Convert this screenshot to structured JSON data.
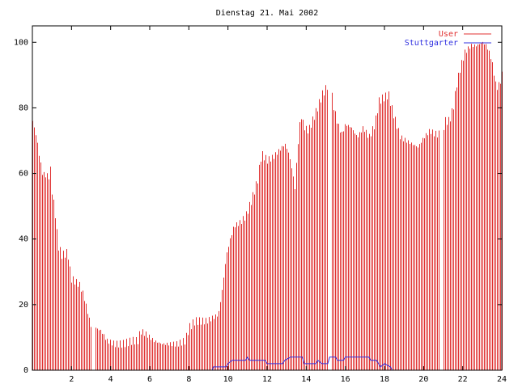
{
  "chart_data": {
    "type": "bar",
    "title": "Dienstag 21. Mai 2002",
    "xlabel": "",
    "ylabel": "",
    "xlim": [
      0,
      24
    ],
    "ylim": [
      0,
      105
    ],
    "x_ticks": [
      2,
      4,
      6,
      8,
      10,
      12,
      14,
      16,
      18,
      20,
      22,
      24
    ],
    "x_tick_labels": [
      "2",
      "4",
      "6",
      "8",
      "10",
      "12",
      "14",
      "16",
      "18",
      "20",
      "22",
      "24"
    ],
    "y_ticks": [
      0,
      20,
      40,
      60,
      80,
      100
    ],
    "y_tick_labels": [
      "0",
      "20",
      "40",
      "60",
      "80",
      "100"
    ],
    "grid": false,
    "legend_position": "top-right",
    "series": [
      {
        "name": "User",
        "kind": "impulses",
        "color": "#e03030",
        "anchors": [
          [
            0.0,
            76
          ],
          [
            0.2,
            71
          ],
          [
            0.35,
            65
          ],
          [
            0.5,
            60
          ],
          [
            0.85,
            59
          ],
          [
            0.9,
            62
          ],
          [
            1.0,
            54
          ],
          [
            1.15,
            48
          ],
          [
            1.3,
            38
          ],
          [
            1.5,
            35
          ],
          [
            1.8,
            36
          ],
          [
            1.95,
            28
          ],
          [
            2.2,
            27
          ],
          [
            2.4,
            26
          ],
          [
            2.6,
            23
          ],
          [
            2.8,
            18
          ],
          [
            3.0,
            13
          ],
          [
            3.2,
            13
          ],
          [
            3.5,
            12
          ],
          [
            3.8,
            9
          ],
          [
            4.2,
            8
          ],
          [
            4.6,
            8
          ],
          [
            5.1,
            9
          ],
          [
            5.4,
            9
          ],
          [
            5.5,
            12
          ],
          [
            5.8,
            11
          ],
          [
            6.2,
            9
          ],
          [
            6.6,
            8
          ],
          [
            7.0,
            8
          ],
          [
            7.4,
            8
          ],
          [
            7.8,
            9
          ],
          [
            8.0,
            13
          ],
          [
            8.3,
            15
          ],
          [
            8.6,
            15
          ],
          [
            8.9,
            15
          ],
          [
            9.2,
            16
          ],
          [
            9.5,
            17
          ],
          [
            9.7,
            25
          ],
          [
            9.9,
            35
          ],
          [
            10.1,
            40
          ],
          [
            10.3,
            44
          ],
          [
            10.6,
            45
          ],
          [
            10.9,
            47
          ],
          [
            11.2,
            52
          ],
          [
            11.5,
            58
          ],
          [
            11.7,
            66
          ],
          [
            12.0,
            64
          ],
          [
            12.3,
            65
          ],
          [
            12.6,
            67
          ],
          [
            12.9,
            69
          ],
          [
            13.1,
            66
          ],
          [
            13.3,
            60
          ],
          [
            13.4,
            55
          ],
          [
            13.55,
            68
          ],
          [
            13.7,
            78
          ],
          [
            13.9,
            74
          ],
          [
            14.1,
            73
          ],
          [
            14.3,
            76
          ],
          [
            14.5,
            79
          ],
          [
            14.8,
            84
          ],
          [
            15.0,
            86
          ],
          [
            15.2,
            88
          ],
          [
            15.4,
            80
          ],
          [
            15.6,
            75
          ],
          [
            15.8,
            72
          ],
          [
            16.0,
            75
          ],
          [
            16.3,
            74
          ],
          [
            16.6,
            71
          ],
          [
            16.9,
            74
          ],
          [
            17.2,
            71
          ],
          [
            17.5,
            75
          ],
          [
            17.7,
            82
          ],
          [
            17.9,
            83
          ],
          [
            18.2,
            84
          ],
          [
            18.4,
            79
          ],
          [
            18.6,
            75
          ],
          [
            18.8,
            71
          ],
          [
            19.1,
            70
          ],
          [
            19.4,
            69
          ],
          [
            19.7,
            68
          ],
          [
            20.0,
            71
          ],
          [
            20.3,
            73
          ],
          [
            20.6,
            72
          ],
          [
            20.9,
            72
          ],
          [
            21.1,
            76
          ],
          [
            21.3,
            76
          ],
          [
            21.5,
            80
          ],
          [
            21.7,
            88
          ],
          [
            21.9,
            93
          ],
          [
            22.1,
            97
          ],
          [
            22.4,
            99
          ],
          [
            22.7,
            99
          ],
          [
            23.0,
            100
          ],
          [
            23.2,
            99
          ],
          [
            23.4,
            96
          ],
          [
            23.55,
            92
          ],
          [
            23.7,
            86
          ],
          [
            23.85,
            87
          ],
          [
            24.0,
            90
          ]
        ],
        "gaps": [
          [
            3.0,
            3.15
          ],
          [
            15.1,
            15.25
          ],
          [
            20.85,
            21.0
          ]
        ]
      },
      {
        "name": "Stuttgarter",
        "kind": "line",
        "color": "#3030e0",
        "points": [
          [
            0.0,
            0
          ],
          [
            9.2,
            0
          ],
          [
            9.25,
            1
          ],
          [
            9.9,
            1
          ],
          [
            10.0,
            2
          ],
          [
            10.2,
            3
          ],
          [
            10.9,
            3
          ],
          [
            11.0,
            4
          ],
          [
            11.1,
            3
          ],
          [
            11.9,
            3
          ],
          [
            12.0,
            2
          ],
          [
            12.8,
            2
          ],
          [
            12.9,
            3
          ],
          [
            13.2,
            4
          ],
          [
            13.8,
            4
          ],
          [
            13.9,
            2
          ],
          [
            14.5,
            2
          ],
          [
            14.6,
            3
          ],
          [
            14.8,
            2
          ],
          [
            15.1,
            2
          ],
          [
            15.2,
            4
          ],
          [
            15.5,
            4
          ],
          [
            15.6,
            3
          ],
          [
            15.9,
            3
          ],
          [
            16.0,
            4
          ],
          [
            17.2,
            4
          ],
          [
            17.3,
            3
          ],
          [
            17.6,
            3
          ],
          [
            17.7,
            2
          ],
          [
            17.8,
            1
          ],
          [
            18.0,
            2
          ],
          [
            18.3,
            1
          ],
          [
            18.4,
            0
          ],
          [
            24.0,
            0
          ]
        ]
      }
    ]
  }
}
